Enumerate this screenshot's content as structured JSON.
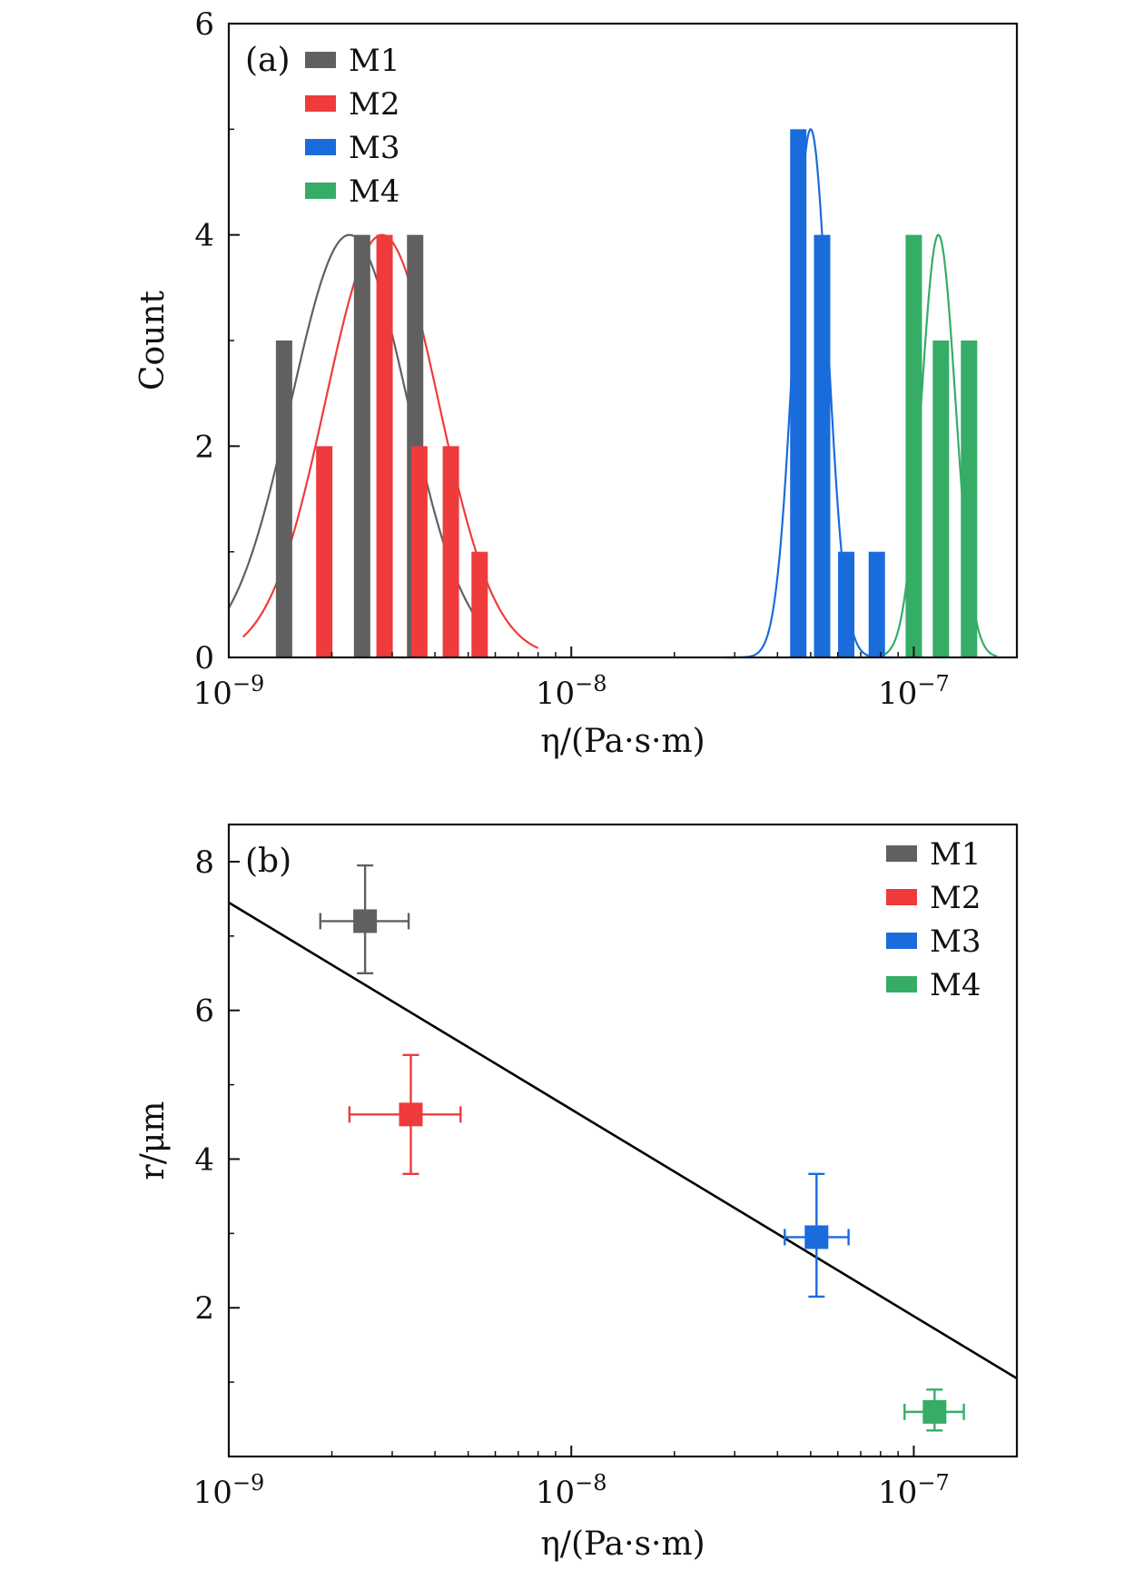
{
  "chart_data": [
    {
      "panel": "a",
      "type": "bar",
      "panel_label": "(a)",
      "xscale": "log",
      "xlim": [
        1e-09,
        2e-07
      ],
      "ylim": [
        0,
        6
      ],
      "xlabel": "η/(Pa·s·m)",
      "ylabel": "Count",
      "yticks": [
        0,
        2,
        4,
        6
      ],
      "xticks": [
        {
          "value": 1e-09,
          "base": "10",
          "exp": "−9"
        },
        {
          "value": 1e-08,
          "base": "10",
          "exp": "−8"
        },
        {
          "value": 1e-07,
          "base": "10",
          "exp": "−7"
        }
      ],
      "legend_position": "top-left",
      "series": [
        {
          "name": "M1",
          "color": "#606060",
          "bars": [
            {
              "x": 1.45e-09,
              "count": 3
            },
            {
              "x": 2.45e-09,
              "count": 4
            },
            {
              "x": 3.5e-09,
              "count": 4
            }
          ],
          "fit": {
            "center": 2.25e-09,
            "peak": 4,
            "log_sigma": 0.17,
            "range": [
              1e-09,
              5.2e-09
            ]
          }
        },
        {
          "name": "M2",
          "color": "#ef3b3b",
          "bars": [
            {
              "x": 1.9e-09,
              "count": 2
            },
            {
              "x": 2.85e-09,
              "count": 4
            },
            {
              "x": 3.6e-09,
              "count": 2
            },
            {
              "x": 4.45e-09,
              "count": 2
            },
            {
              "x": 5.4e-09,
              "count": 1
            }
          ],
          "fit": {
            "center": 2.8e-09,
            "peak": 4,
            "log_sigma": 0.165,
            "range": [
              1.1e-09,
              8e-09
            ]
          }
        },
        {
          "name": "M3",
          "color": "#1a6cdc",
          "bars": [
            {
              "x": 4.6e-08,
              "count": 5
            },
            {
              "x": 5.4e-08,
              "count": 4
            },
            {
              "x": 6.35e-08,
              "count": 1
            },
            {
              "x": 7.8e-08,
              "count": 1
            }
          ],
          "fit": {
            "center": 5e-08,
            "peak": 5,
            "log_sigma": 0.05,
            "range": [
              2.8e-08,
              8.6e-08
            ]
          }
        },
        {
          "name": "M4",
          "color": "#35ad67",
          "bars": [
            {
              "x": 1e-07,
              "count": 4
            },
            {
              "x": 1.2e-07,
              "count": 3
            },
            {
              "x": 1.45e-07,
              "count": 3
            }
          ],
          "fit": {
            "center": 1.18e-07,
            "peak": 4,
            "log_sigma": 0.05,
            "range": [
              7.2e-08,
              1.75e-07
            ]
          }
        }
      ]
    },
    {
      "panel": "b",
      "type": "scatter",
      "panel_label": "(b)",
      "xscale": "log",
      "xlim": [
        1e-09,
        2e-07
      ],
      "ylim": [
        0,
        8.5
      ],
      "xlabel": "η/(Pa·s·m)",
      "ylabel": "r/μm",
      "yticks": [
        2,
        4,
        6,
        8
      ],
      "xticks": [
        {
          "value": 1e-09,
          "base": "10",
          "exp": "−9"
        },
        {
          "value": 1e-08,
          "base": "10",
          "exp": "−8"
        },
        {
          "value": 1e-07,
          "base": "10",
          "exp": "−7"
        }
      ],
      "legend_position": "top-right",
      "series": [
        {
          "name": "M1",
          "color": "#606060",
          "x": 2.5e-09,
          "y": 7.2,
          "x_err": [
            1.85e-09,
            3.35e-09
          ],
          "y_err": [
            6.5,
            7.95
          ]
        },
        {
          "name": "M2",
          "color": "#ef3b3b",
          "x": 3.4e-09,
          "y": 4.6,
          "x_err": [
            2.25e-09,
            4.75e-09
          ],
          "y_err": [
            3.8,
            5.4
          ]
        },
        {
          "name": "M3",
          "color": "#1a6cdc",
          "x": 5.2e-08,
          "y": 2.95,
          "x_err": [
            4.2e-08,
            6.45e-08
          ],
          "y_err": [
            2.15,
            3.8
          ]
        },
        {
          "name": "M4",
          "color": "#35ad67",
          "x": 1.15e-07,
          "y": 0.6,
          "x_err": [
            9.4e-08,
            1.4e-07
          ],
          "y_err": [
            0.35,
            0.9
          ]
        }
      ],
      "fit_line": {
        "points": [
          [
            1e-09,
            7.45
          ],
          [
            2e-07,
            1.05
          ]
        ],
        "color": "#000000"
      }
    }
  ]
}
